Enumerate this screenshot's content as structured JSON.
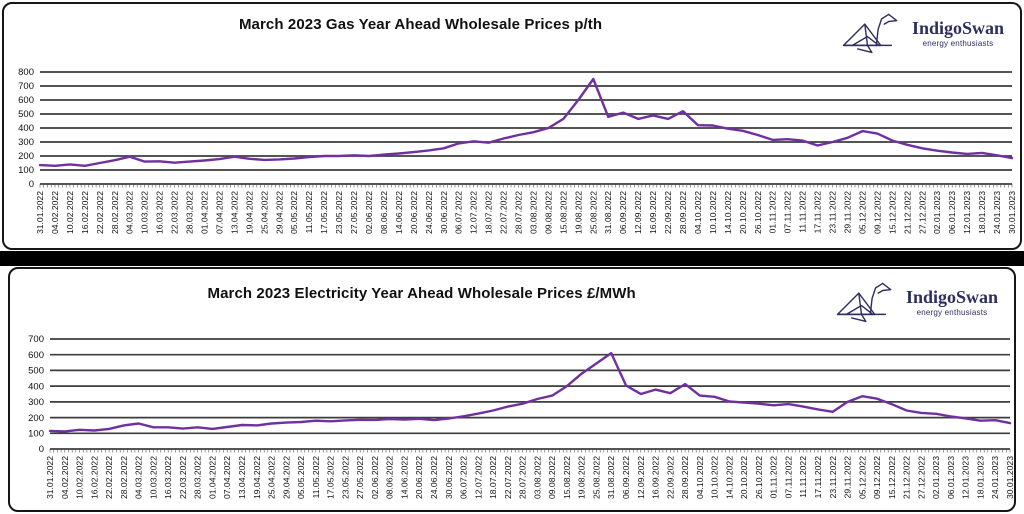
{
  "page": {
    "background": "#ffffff",
    "separator_color": "#000000"
  },
  "logo": {
    "name": "IndigoSwan",
    "tagline": "energy enthusiasts",
    "color": "#2e2e60",
    "icon": "origami-swan-icon"
  },
  "chart_data": [
    {
      "type": "line",
      "title": "March 2023 Gas Year Ahead Wholesale Prices p/th",
      "unit": "p/th",
      "series_name": "Gas Year Ahead",
      "series_color": "#7030A0",
      "grid": true,
      "legend_position": "none",
      "ylim": [
        0,
        800
      ],
      "yticks": [
        800,
        700,
        600,
        500,
        400,
        300,
        200,
        100,
        0
      ],
      "x_labels": [
        "31.01.2022",
        "04.02.2022",
        "10.02.2022",
        "16.02.2022",
        "22.02.2022",
        "28.02.2022",
        "04.03.2022",
        "10.03.2022",
        "16.03.2022",
        "22.03.2022",
        "28.03.2022",
        "01.04.2022",
        "07.04.2022",
        "13.04.2022",
        "19.04.2022",
        "25.04.2022",
        "29.04.2022",
        "05.05.2022",
        "11.05.2022",
        "17.05.2022",
        "23.05.2022",
        "27.05.2022",
        "02.06.2022",
        "08.06.2022",
        "14.06.2022",
        "20.06.2022",
        "24.06.2022",
        "30.06.2022",
        "06.07.2022",
        "12.07.2022",
        "18.07.2022",
        "22.07.2022",
        "28.07.2022",
        "03.08.2022",
        "09.08.2022",
        "15.08.2022",
        "19.08.2022",
        "25.08.2022",
        "31.08.2022",
        "06.09.2022",
        "12.09.2022",
        "16.09.2022",
        "22.09.2022",
        "28.09.2022",
        "04.10.2022",
        "10.10.2022",
        "14.10.2022",
        "20.10.2022",
        "26.10.2022",
        "01.11.2022",
        "07.11.2022",
        "11.11.2022",
        "17.11.2022",
        "23.11.2022",
        "29.11.2022",
        "05.12.2022",
        "09.12.2022",
        "15.12.2022",
        "21.12.2022",
        "27.12.2022",
        "02.01.2023",
        "06.01.2023",
        "12.01.2023",
        "18.01.2023",
        "24.01.2023",
        "30.01.2023"
      ],
      "values": [
        135,
        130,
        140,
        130,
        150,
        170,
        195,
        160,
        162,
        152,
        160,
        168,
        178,
        195,
        180,
        172,
        176,
        182,
        192,
        200,
        200,
        205,
        200,
        210,
        218,
        228,
        240,
        255,
        290,
        305,
        295,
        325,
        350,
        370,
        400,
        465,
        600,
        750,
        480,
        510,
        465,
        490,
        465,
        520,
        420,
        418,
        395,
        380,
        350,
        315,
        320,
        310,
        275,
        300,
        330,
        378,
        360,
        310,
        280,
        255,
        238,
        225,
        215,
        222,
        205,
        185
      ]
    },
    {
      "type": "line",
      "title": "March 2023 Electricity Year Ahead Wholesale Prices £/MWh",
      "unit": "£/MWh",
      "series_name": "Electricity Year Ahead",
      "series_color": "#7030A0",
      "grid": true,
      "legend_position": "none",
      "ylim": [
        0,
        700
      ],
      "yticks": [
        700,
        600,
        500,
        400,
        300,
        200,
        100,
        0
      ],
      "x_labels": [
        "31.01.2022",
        "04.02.2022",
        "10.02.2022",
        "16.02.2022",
        "22.02.2022",
        "28.02.2022",
        "04.03.2022",
        "10.03.2022",
        "16.03.2022",
        "22.03.2022",
        "28.03.2022",
        "01.04.2022",
        "07.04.2022",
        "13.04.2022",
        "19.04.2022",
        "25.04.2022",
        "29.04.2022",
        "05.05.2022",
        "11.05.2022",
        "17.05.2022",
        "23.05.2022",
        "27.05.2022",
        "02.06.2022",
        "08.06.2022",
        "14.06.2022",
        "20.06.2022",
        "24.06.2022",
        "30.06.2022",
        "06.07.2022",
        "12.07.2022",
        "18.07.2022",
        "22.07.2022",
        "28.07.2022",
        "03.08.2022",
        "09.08.2022",
        "15.08.2022",
        "19.08.2022",
        "25.08.2022",
        "31.08.2022",
        "06.09.2022",
        "12.09.2022",
        "16.09.2022",
        "22.09.2022",
        "28.09.2022",
        "04.10.2022",
        "10.10.2022",
        "14.10.2022",
        "20.10.2022",
        "26.10.2022",
        "01.11.2022",
        "07.11.2022",
        "11.11.2022",
        "17.11.2022",
        "23.11.2022",
        "29.11.2022",
        "05.12.2022",
        "09.12.2022",
        "15.12.2022",
        "21.12.2022",
        "27.12.2022",
        "02.01.2023",
        "06.01.2023",
        "12.01.2023",
        "18.01.2023",
        "24.01.2023",
        "30.01.2023"
      ],
      "values": [
        115,
        112,
        122,
        118,
        128,
        150,
        162,
        138,
        138,
        130,
        138,
        128,
        140,
        153,
        150,
        162,
        168,
        172,
        180,
        176,
        182,
        186,
        185,
        190,
        188,
        192,
        184,
        194,
        208,
        225,
        245,
        270,
        288,
        318,
        340,
        400,
        480,
        545,
        610,
        405,
        350,
        378,
        355,
        413,
        340,
        332,
        302,
        295,
        288,
        278,
        286,
        270,
        252,
        237,
        300,
        336,
        320,
        285,
        245,
        230,
        224,
        207,
        195,
        180,
        183,
        165
      ]
    }
  ]
}
